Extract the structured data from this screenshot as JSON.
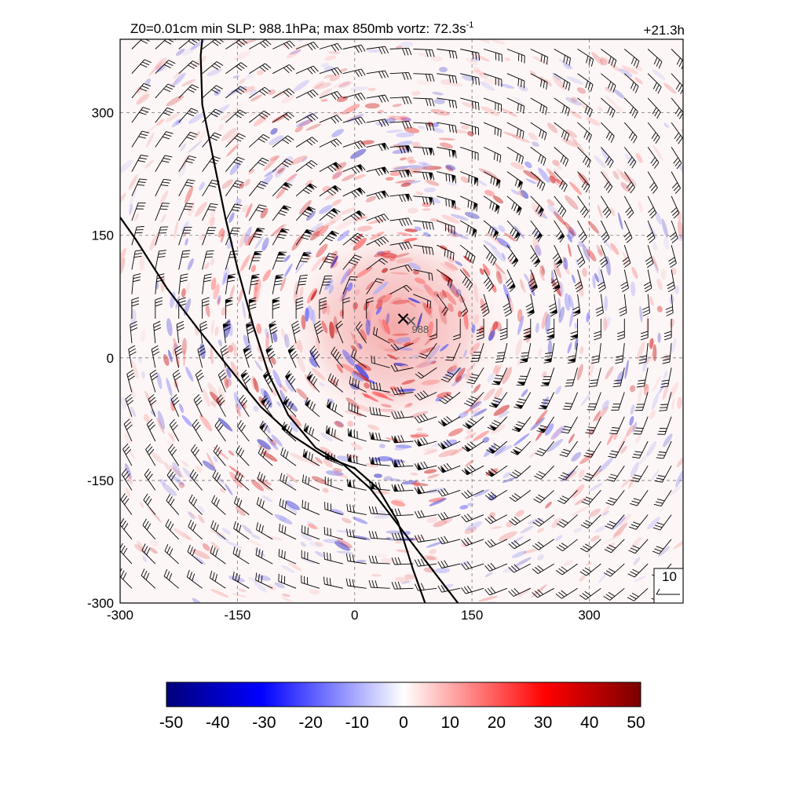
{
  "chart_data": {
    "type": "heatmap",
    "title_main": "Z0=0.01cm  min SLP: 988.1hPa; max 850mb vortz:  72.3s",
    "title_sup": "-1",
    "time_label": "+21.3h",
    "xlim": [
      -300,
      420
    ],
    "ylim": [
      -300,
      390
    ],
    "x_ticks": [
      "-300",
      "-150",
      "0",
      "150",
      "300"
    ],
    "y_ticks": [
      "300",
      "150",
      "0",
      "-150",
      "-300"
    ],
    "x_tick_values": [
      -300,
      -150,
      0,
      150,
      300
    ],
    "y_tick_values": [
      300,
      150,
      0,
      -150,
      -300
    ],
    "grid": true,
    "center": {
      "x": 62,
      "y": 48,
      "marker": "x"
    },
    "center2": {
      "x": 72,
      "y": 45
    },
    "slp_label": "988",
    "barb_reference": "10",
    "colorbar": {
      "ticks": [
        "-50",
        "-40",
        "-30",
        "-20",
        "-10",
        "0",
        "10",
        "20",
        "30",
        "40",
        "50"
      ],
      "min": -50,
      "max": 50,
      "colors": [
        "#00007a",
        "#0000ff",
        "#ffffff",
        "#ff0000",
        "#7a0000"
      ]
    },
    "coastlines": [
      [
        [
          -195,
          390
        ],
        [
          -197,
          370
        ],
        [
          -195,
          310
        ],
        [
          -180,
          240
        ],
        [
          -165,
          170
        ],
        [
          -150,
          110
        ],
        [
          -130,
          40
        ],
        [
          -110,
          -20
        ],
        [
          -85,
          -70
        ],
        [
          -50,
          -110
        ],
        [
          -15,
          -130
        ],
        [
          20,
          -160
        ],
        [
          60,
          -210
        ],
        [
          100,
          -260
        ],
        [
          132,
          -300
        ]
      ],
      [
        [
          -300,
          172
        ],
        [
          -280,
          145
        ],
        [
          -260,
          115
        ],
        [
          -240,
          85
        ],
        [
          -220,
          60
        ],
        [
          -200,
          35
        ],
        [
          -175,
          5
        ],
        [
          -150,
          -25
        ],
        [
          -120,
          -60
        ],
        [
          -80,
          -95
        ],
        [
          -40,
          -120
        ],
        [
          0,
          -135
        ],
        [
          30,
          -160
        ],
        [
          55,
          -200
        ],
        [
          75,
          -260
        ],
        [
          90,
          -300
        ]
      ]
    ]
  }
}
